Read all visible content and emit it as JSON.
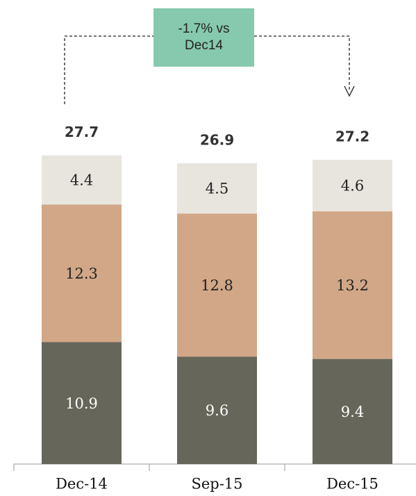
{
  "chart_data": {
    "type": "stacked_bar",
    "categories": [
      "Dec-14",
      "Sep-15",
      "Dec-15"
    ],
    "series": [
      {
        "color": "#66665a",
        "label_color": "#ffffff",
        "values": [
          10.9,
          9.6,
          9.4
        ]
      },
      {
        "color": "#d1a787",
        "label_color": "#222222",
        "values": [
          12.3,
          12.8,
          13.2
        ]
      },
      {
        "color": "#e8e5de",
        "label_color": "#222222",
        "values": [
          4.4,
          4.5,
          4.6
        ]
      }
    ],
    "totals": [
      27.7,
      26.9,
      27.2
    ],
    "annotation": "-1.7% vs Dec14",
    "annotation_color": "#86c9ae"
  }
}
